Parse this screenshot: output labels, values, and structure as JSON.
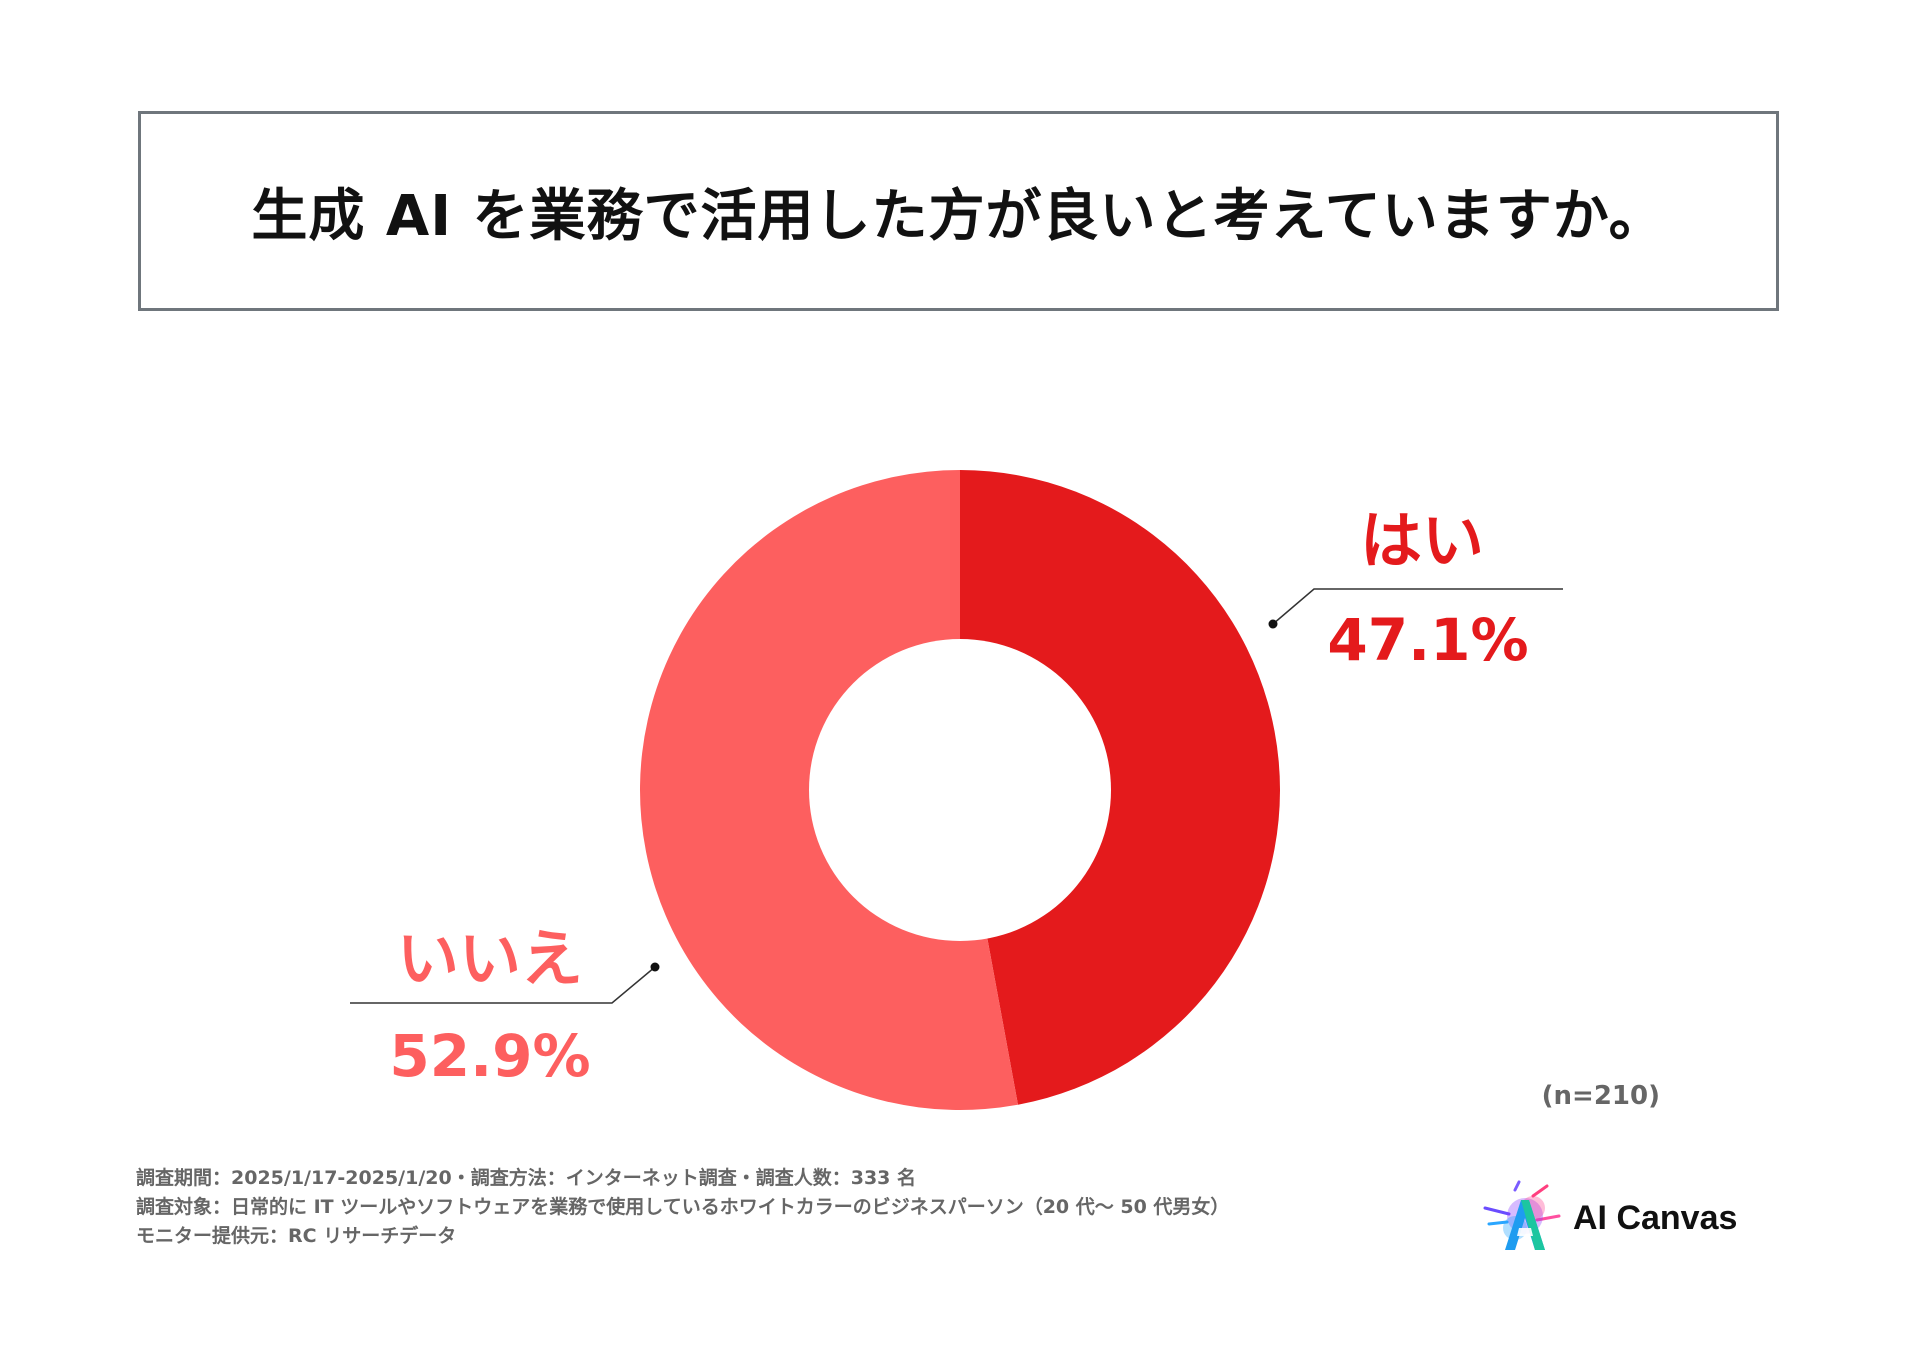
{
  "title": "生成 AI を業務で活用した方が良いと考えていますか。",
  "chart_data": {
    "type": "pie",
    "title": "生成 AI を業務で活用した方が良いと考えていますか。",
    "slices": [
      {
        "label": "はい",
        "value": 47.1,
        "value_label": "47.1%",
        "color": "#e41a1c"
      },
      {
        "label": "いいえ",
        "value": 52.9,
        "value_label": "52.9%",
        "color": "#fd5f5f"
      }
    ],
    "donut": true
  },
  "sample_size": "(n=210)",
  "footnotes": [
    "調査期間：2025/1/17-2025/1/20・調査方法：インターネット調査・調査人数：333 名",
    "調査対象：日常的に IT ツールやソフトウェアを業務で使用しているホワイトカラーのビジネスパーソン（20 代〜 50 代男女）",
    "モニター提供元：RC リサーチデータ"
  ],
  "logo": {
    "text": "AI Canvas",
    "icon": "ai-canvas-logo-icon"
  }
}
